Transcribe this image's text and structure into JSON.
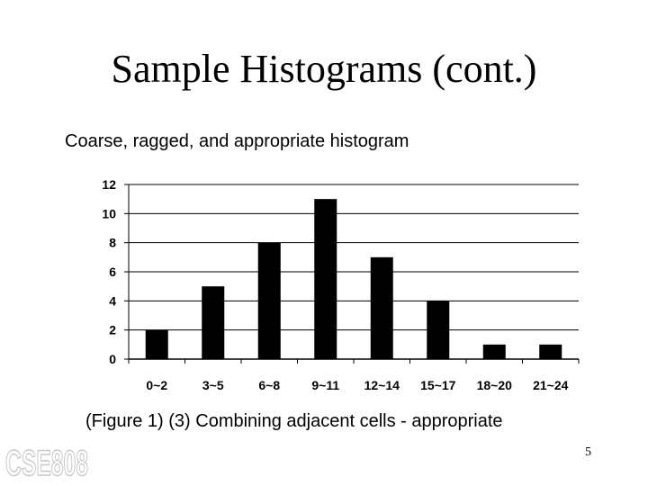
{
  "slide": {
    "title": "Sample Histograms (cont.)",
    "subtitle": "Coarse, ragged, and appropriate histogram",
    "caption": "(Figure 1) (3) Combining adjacent cells - appropriate",
    "page_number": "5",
    "logo_text": "CSE808"
  },
  "chart_data": {
    "type": "bar",
    "categories": [
      "0~2",
      "3~5",
      "6~8",
      "9~11",
      "12~14",
      "15~17",
      "18~20",
      "21~24"
    ],
    "values": [
      2,
      5,
      8,
      11,
      7,
      4,
      1,
      1
    ],
    "ylim": [
      0,
      12
    ],
    "yticks": [
      0,
      2,
      4,
      6,
      8,
      10,
      12
    ],
    "grid": true,
    "bar_color": "#000000",
    "grid_color": "#000000"
  }
}
